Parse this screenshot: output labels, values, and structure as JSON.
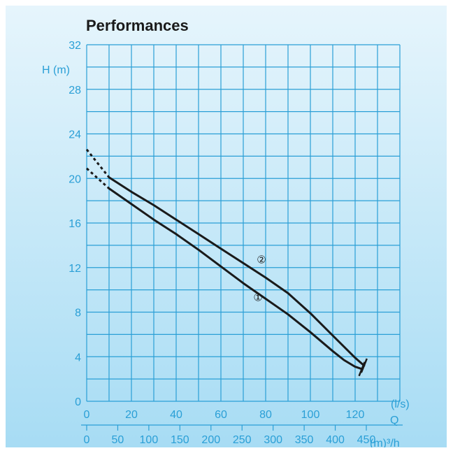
{
  "chart_data": {
    "type": "line",
    "title": "Performances",
    "ylabel": "H (m)",
    "xlabel": "Q",
    "x_unit": "(l/s)",
    "x2_unit": "(m)³/h",
    "xlim": [
      0,
      140
    ],
    "ylim": [
      0,
      32
    ],
    "grid": true,
    "y_ticks": [
      "0",
      "4",
      "8",
      "12",
      "16",
      "20",
      "24",
      "28",
      "32"
    ],
    "x_ticks": [
      "0",
      "20",
      "40",
      "60",
      "80",
      "100",
      "120"
    ],
    "x2_ticks": [
      "0",
      "50",
      "100",
      "150",
      "200",
      "250",
      "300",
      "350",
      "400",
      "450"
    ],
    "series": [
      {
        "name": "①",
        "dashed": [
          [
            0,
            20.9
          ],
          [
            10,
            19.1
          ]
        ],
        "points": [
          [
            10,
            19.1
          ],
          [
            20,
            17.7
          ],
          [
            30,
            16.3
          ],
          [
            40,
            15.0
          ],
          [
            50,
            13.6
          ],
          [
            60,
            12.1
          ],
          [
            70,
            10.6
          ],
          [
            80,
            9.2
          ],
          [
            90,
            7.8
          ],
          [
            100,
            6.2
          ],
          [
            110,
            4.5
          ],
          [
            115,
            3.7
          ],
          [
            120,
            3.1
          ],
          [
            123,
            2.9
          ]
        ]
      },
      {
        "name": "②",
        "dashed": [
          [
            0,
            22.6
          ],
          [
            10,
            20.1
          ]
        ],
        "points": [
          [
            10,
            20.1
          ],
          [
            20,
            18.8
          ],
          [
            30,
            17.6
          ],
          [
            40,
            16.3
          ],
          [
            50,
            15.0
          ],
          [
            60,
            13.7
          ],
          [
            70,
            12.4
          ],
          [
            80,
            11.1
          ],
          [
            90,
            9.7
          ],
          [
            100,
            7.9
          ],
          [
            110,
            5.9
          ],
          [
            120,
            3.9
          ],
          [
            124,
            3.2
          ]
        ]
      }
    ]
  },
  "colors": {
    "background_top": "#e6f5fc",
    "background_bottom": "#a7dcf4",
    "grid": "#2a9fd6",
    "curve": "#1a1a1a"
  }
}
